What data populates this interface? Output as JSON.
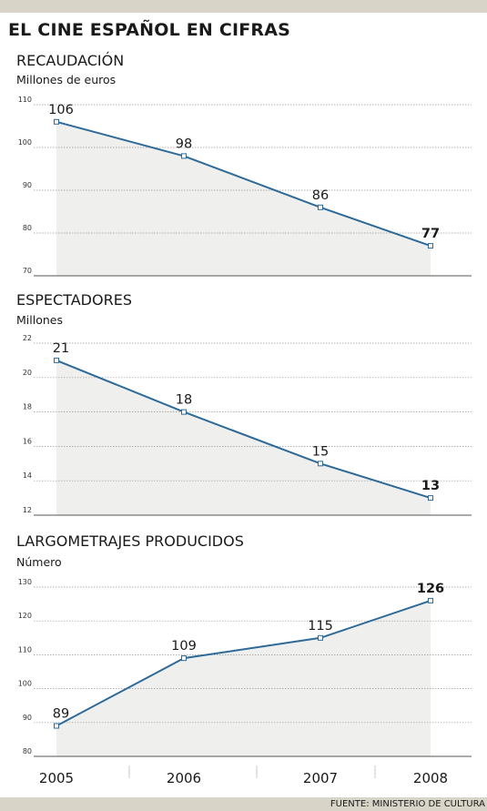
{
  "header": {
    "title": "EL CINE ESPAÑOL EN CIFRAS"
  },
  "footer": {
    "source": "FUENTE: MINISTERIO DE CULTURA"
  },
  "colors": {
    "line": "#2e6a98",
    "area": "#efefed",
    "band": "#d8d5c8",
    "grid": "#999999"
  },
  "chart_data": [
    {
      "type": "area",
      "title": "RECAUDACIÓN",
      "ylabel": "Millones de euros",
      "categories": [
        "2005",
        "2006",
        "2007",
        "2008"
      ],
      "values": [
        106,
        98,
        86,
        77
      ],
      "value_labels": [
        "106",
        "98",
        "86",
        "77"
      ],
      "ylim": [
        70,
        110
      ],
      "yticks": [
        "70",
        "80",
        "90",
        "100",
        "110"
      ],
      "grid": true
    },
    {
      "type": "area",
      "title": "ESPECTADORES",
      "ylabel": "Millones",
      "categories": [
        "2005",
        "2006",
        "2007",
        "2008"
      ],
      "values": [
        21,
        18,
        15,
        13
      ],
      "value_labels": [
        "21",
        "18",
        "15",
        "13"
      ],
      "ylim": [
        12,
        22
      ],
      "yticks": [
        "12",
        "14",
        "16",
        "18",
        "20",
        "22"
      ],
      "grid": true
    },
    {
      "type": "area",
      "title": "LARGOMETRAJES PRODUCIDOS",
      "ylabel": "Número",
      "categories": [
        "2005",
        "2006",
        "2007",
        "2008"
      ],
      "values": [
        89,
        109,
        115,
        126
      ],
      "value_labels": [
        "89",
        "109",
        "115",
        "126"
      ],
      "ylim": [
        80,
        130
      ],
      "yticks": [
        "80",
        "90",
        "100",
        "110",
        "120",
        "130"
      ],
      "grid": true,
      "xticks": [
        "2005",
        "2006",
        "2007",
        "2008"
      ]
    }
  ]
}
